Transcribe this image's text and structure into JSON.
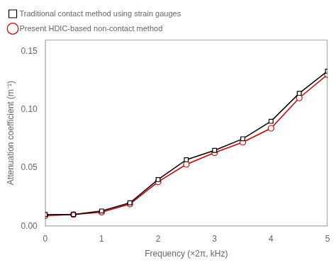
{
  "chart_data": {
    "type": "line",
    "x": [
      0,
      0.5,
      1.0,
      1.5,
      2.0,
      2.5,
      3.0,
      3.5,
      4.0,
      4.5,
      5.0
    ],
    "series": [
      {
        "name": "Traditional contact method using strain gauges",
        "color": "#000000",
        "marker": "square",
        "values": [
          0.01,
          0.01,
          0.013,
          0.02,
          0.04,
          0.057,
          0.065,
          0.075,
          0.09,
          0.114,
          0.133
        ]
      },
      {
        "name": "Present HDIC-based non-contact method",
        "color": "#cc0000",
        "marker": "circle",
        "values": [
          0.009,
          0.01,
          0.012,
          0.019,
          0.038,
          0.053,
          0.063,
          0.072,
          0.084,
          0.11,
          0.13
        ]
      }
    ],
    "xlabel": "Frequency (×2π, kHz)",
    "ylabel": "Attenuation coefficient (m⁻¹)",
    "xlim": [
      0,
      5
    ],
    "ylim": [
      0.0,
      0.16
    ],
    "xticks": [
      0,
      1,
      2,
      3,
      4,
      5
    ],
    "yticks": [
      {
        "value": 0.0,
        "label": "0.00"
      },
      0.05,
      {
        "value": 0.1,
        "label": "0.10"
      },
      0.15
    ],
    "grid": false,
    "legend": "upper left"
  }
}
